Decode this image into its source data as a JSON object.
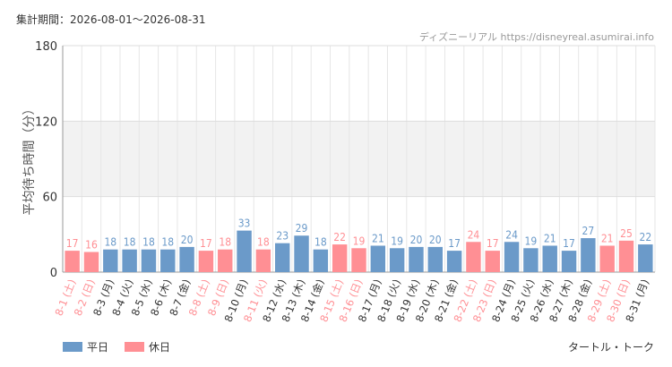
{
  "header": {
    "period_label": "集計期間：2026-08-01～2026-08-31",
    "credit": "ディズニーリアル https://disneyreal.asumirai.info"
  },
  "chart_data": {
    "type": "bar",
    "ylabel": "平均待ち時間（分）",
    "ylim": [
      0,
      180
    ],
    "yticks": [
      0,
      60,
      120,
      180
    ],
    "subtitle": "タートル・トーク",
    "legend": [
      {
        "name": "平日",
        "color": "#6b9ac9"
      },
      {
        "name": "休日",
        "color": "#ff8f94"
      }
    ],
    "colors": {
      "weekday": "#6b9ac9",
      "holiday": "#ff8f94",
      "weekday_text": "#333333",
      "holiday_text": "#ff8f94",
      "band": "#f2f2f2"
    },
    "categories": [
      "8-1 (土)",
      "8-2 (日)",
      "8-3 (月)",
      "8-4 (火)",
      "8-5 (水)",
      "8-6 (木)",
      "8-7 (金)",
      "8-8 (土)",
      "8-9 (日)",
      "8-10 (月)",
      "8-11 (火)",
      "8-12 (水)",
      "8-13 (木)",
      "8-14 (金)",
      "8-15 (土)",
      "8-16 (日)",
      "8-17 (月)",
      "8-18 (火)",
      "8-19 (水)",
      "8-20 (木)",
      "8-21 (金)",
      "8-22 (土)",
      "8-23 (日)",
      "8-24 (月)",
      "8-25 (火)",
      "8-26 (水)",
      "8-27 (木)",
      "8-28 (金)",
      "8-29 (土)",
      "8-30 (日)",
      "8-31 (月)"
    ],
    "values": [
      17,
      16,
      18,
      18,
      18,
      18,
      20,
      17,
      18,
      33,
      18,
      23,
      29,
      18,
      22,
      19,
      21,
      19,
      20,
      20,
      17,
      24,
      17,
      24,
      19,
      21,
      17,
      27,
      21,
      25,
      22
    ],
    "holiday": [
      true,
      true,
      false,
      false,
      false,
      false,
      false,
      true,
      true,
      false,
      true,
      false,
      false,
      false,
      true,
      true,
      false,
      false,
      false,
      false,
      false,
      true,
      true,
      false,
      false,
      false,
      false,
      false,
      true,
      true,
      false
    ]
  }
}
